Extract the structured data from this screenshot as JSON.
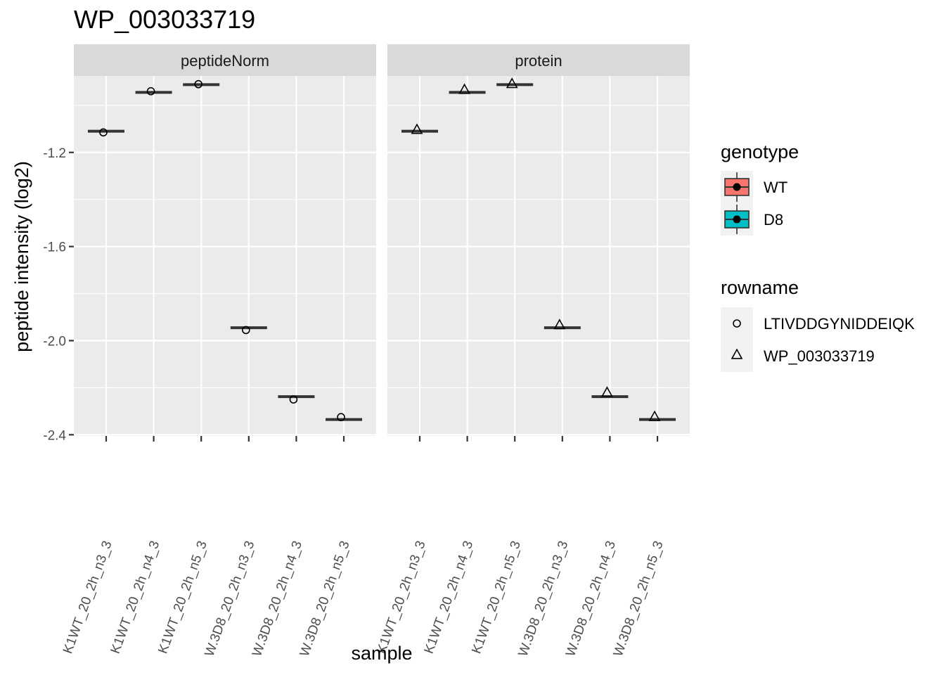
{
  "chart_data": {
    "type": "box",
    "title": "WP_003033719",
    "xlabel": "sample",
    "ylabel": "peptide intensity (log2)",
    "ylim": [
      -2.405,
      -0.875
    ],
    "y_ticks": [
      -1.2,
      -1.6,
      -2.0,
      -2.4
    ],
    "y_tick_labels": [
      "-1.2",
      "-1.6",
      "-2.0",
      "-2.4"
    ],
    "grid": true,
    "categories": [
      "K1WT_20_2h_n3_3",
      "K1WT_20_2h_n4_3",
      "K1WT_20_2h_n5_3",
      "W.3D8_20_2h_n3_3",
      "W.3D8_20_2h_n4_3",
      "W.3D8_20_2h_n5_3"
    ],
    "category_genotype": [
      "WT",
      "WT",
      "WT",
      "D8",
      "D8",
      "D8"
    ],
    "facets": [
      {
        "name": "peptideNorm",
        "box_median": [
          -1.11,
          -0.945,
          -0.912,
          -1.945,
          -2.238,
          -2.335
        ],
        "points": [
          {
            "rowname": "LTIVDDGYNIDDEIQK",
            "values": [
              -1.115,
              -0.94,
              -0.91,
              -1.955,
              -2.25,
              -2.325
            ]
          }
        ]
      },
      {
        "name": "protein",
        "box_median": [
          -1.11,
          -0.945,
          -0.912,
          -1.945,
          -2.238,
          -2.335
        ],
        "points": [
          {
            "rowname": "WP_003033719",
            "values": [
              -1.105,
              -0.935,
              -0.91,
              -1.935,
              -2.222,
              -2.325
            ]
          }
        ]
      }
    ],
    "legend_position": "right",
    "legends": [
      {
        "title": "genotype",
        "entries": [
          {
            "label": "WT",
            "color": "#F8766D"
          },
          {
            "label": "D8",
            "color": "#00BFC4"
          }
        ]
      },
      {
        "title": "rowname",
        "entries": [
          {
            "label": "LTIVDDGYNIDDEIQK",
            "shape": "circle"
          },
          {
            "label": "WP_003033719",
            "shape": "triangle"
          }
        ]
      }
    ]
  },
  "colors": {
    "panel_bg": "#EBEBEB",
    "strip_bg": "#D9D9D9",
    "grid": "#FFFFFF",
    "box_line": "#333333",
    "tick": "#333333"
  }
}
